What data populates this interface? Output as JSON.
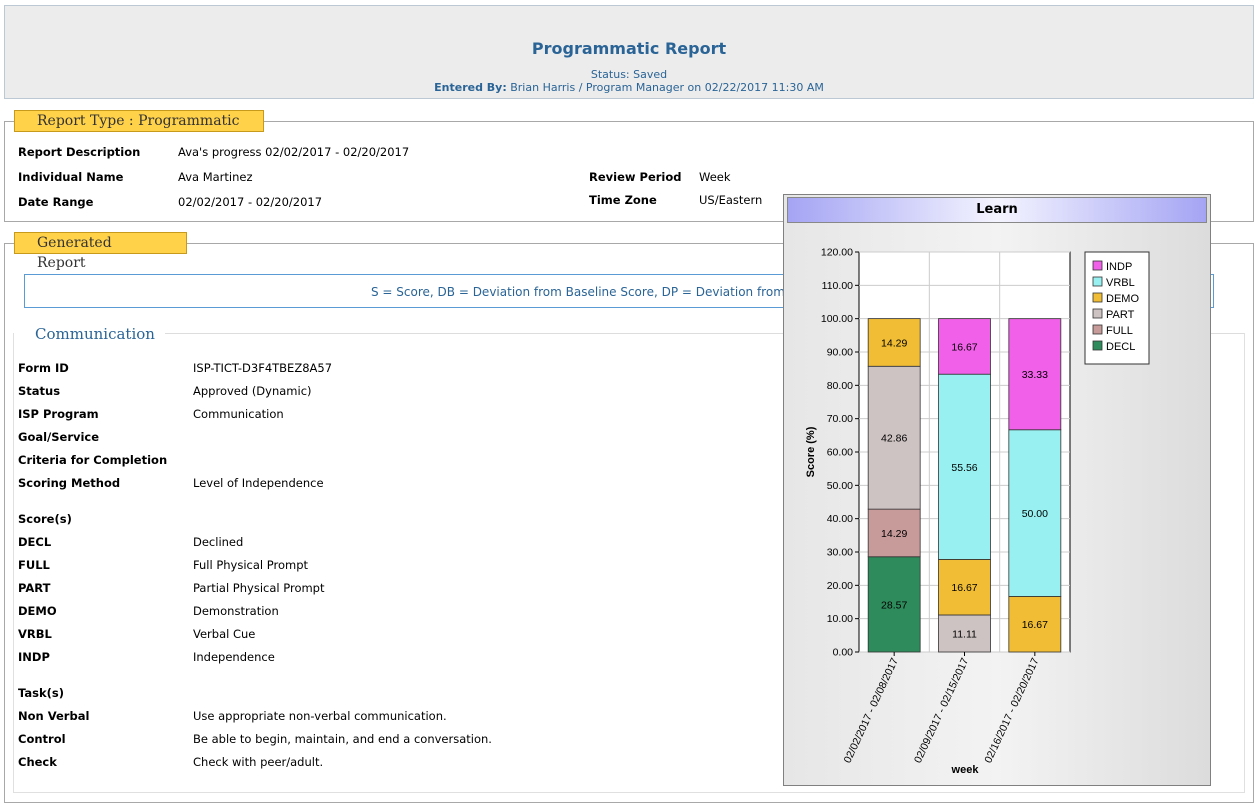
{
  "header": {
    "title": "Programmatic Report",
    "status": "Status: Saved",
    "entered_by_label": "Entered By:",
    "entered_by_value": "Brian Harris / Program Manager  on  02/22/2017 11:30 AM"
  },
  "report_type": {
    "legend": "Report Type :  Programmatic",
    "fields": [
      {
        "label": "Report Description",
        "value": "Ava's progress 02/02/2017 - 02/20/2017"
      },
      {
        "label": "Individual Name",
        "value": "Ava Martinez"
      },
      {
        "label": "Date Range",
        "value": "02/02/2017 - 02/20/2017"
      },
      {
        "label": "Review Period",
        "value": "Week"
      },
      {
        "label": "Time Zone",
        "value": "US/Eastern"
      }
    ]
  },
  "generated": {
    "legend": "Generated Report",
    "info": "S = Score,  DB = Deviation from Baseline Score,  DP = Deviation from",
    "section_title": "Communication",
    "fields": [
      {
        "label": "Form ID",
        "value": "ISP-TICT-D3F4TBEZ8A57"
      },
      {
        "label": "Status",
        "value": "Approved (Dynamic)"
      },
      {
        "label": "ISP Program",
        "value": "Communication"
      },
      {
        "label": "Goal/Service",
        "value": ""
      },
      {
        "label": "Criteria for Completion",
        "value": ""
      },
      {
        "label": "Scoring Method",
        "value": "Level of Independence"
      }
    ],
    "scores_heading": "Score(s)",
    "scores": [
      {
        "label": "DECL",
        "value": "Declined"
      },
      {
        "label": "FULL",
        "value": "Full Physical Prompt"
      },
      {
        "label": "PART",
        "value": "Partial Physical Prompt"
      },
      {
        "label": "DEMO",
        "value": "Demonstration"
      },
      {
        "label": "VRBL",
        "value": "Verbal Cue"
      },
      {
        "label": "INDP",
        "value": "Independence"
      }
    ],
    "tasks_heading": "Task(s)",
    "tasks": [
      {
        "label": "Non Verbal",
        "value": "Use appropriate non-verbal communication."
      },
      {
        "label": "Control",
        "value": "Be able to begin, maintain, and end a conversation."
      },
      {
        "label": "Check",
        "value": "Check with peer/adult."
      }
    ]
  },
  "chart_data": {
    "type": "bar",
    "stacked": true,
    "title": "Learn",
    "xlabel": "week",
    "ylabel": "Score (%)",
    "ylim": [
      0,
      120
    ],
    "yticks": [
      "0.00",
      "10.00",
      "20.00",
      "30.00",
      "40.00",
      "50.00",
      "60.00",
      "70.00",
      "80.00",
      "90.00",
      "100.00",
      "110.00",
      "120.00"
    ],
    "categories": [
      "02/02/2017 - 02/08/2017",
      "02/09/2017 - 02/15/2017",
      "02/16/2017 - 02/20/2017"
    ],
    "series": [
      {
        "name": "DECL",
        "color": "#2e8b5c",
        "values": [
          28.57,
          0,
          0
        ]
      },
      {
        "name": "FULL",
        "color": "#c89b9b",
        "values": [
          14.29,
          0,
          0
        ]
      },
      {
        "name": "PART",
        "color": "#cec3c3",
        "values": [
          42.86,
          11.11,
          0
        ]
      },
      {
        "name": "DEMO",
        "color": "#f0bd35",
        "values": [
          14.29,
          16.67,
          16.67
        ]
      },
      {
        "name": "VRBL",
        "color": "#98f0f0",
        "values": [
          0,
          55.56,
          50.0
        ]
      },
      {
        "name": "INDP",
        "color": "#f060e8",
        "values": [
          0,
          16.67,
          33.33
        ]
      }
    ],
    "legend_order": [
      "INDP",
      "VRBL",
      "DEMO",
      "PART",
      "FULL",
      "DECL"
    ],
    "grid": true
  }
}
